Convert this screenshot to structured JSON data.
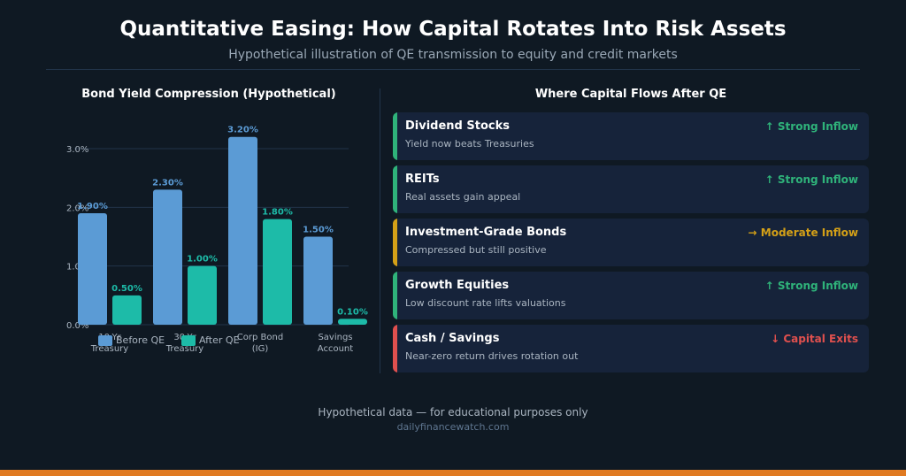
{
  "header": {
    "title": "Quantitative Easing: How Capital Rotates Into Risk Assets",
    "subtitle": "Hypothetical illustration of QE transmission to equity and credit markets"
  },
  "chart_data": {
    "type": "bar",
    "title": "Bond Yield Compression (Hypothetical)",
    "xlabel": "",
    "ylabel": "",
    "categories": [
      "10-Yr Treasury",
      "30-Yr Treasury",
      "Corp Bond (IG)",
      "Savings Account"
    ],
    "category_lines": [
      [
        "10-Yr",
        "Treasury"
      ],
      [
        "30-Yr",
        "Treasury"
      ],
      [
        "Corp Bond",
        "(IG)"
      ],
      [
        "Savings",
        "Account"
      ]
    ],
    "series": [
      {
        "name": "Before QE",
        "values": [
          1.9,
          2.3,
          3.2,
          1.5
        ],
        "labels": [
          "1.90%",
          "2.30%",
          "3.20%",
          "1.50%"
        ],
        "color": "#5b9bd5"
      },
      {
        "name": "After QE",
        "values": [
          0.5,
          1.0,
          1.8,
          0.1
        ],
        "labels": [
          "0.50%",
          "1.00%",
          "1.80%",
          "0.10%"
        ],
        "color": "#1dbba8"
      }
    ],
    "ylim": [
      0,
      3.0
    ],
    "yticks": [
      {
        "value": 0,
        "label": "0.0%"
      },
      {
        "value": 1,
        "label": "1.0%"
      },
      {
        "value": 2,
        "label": "2.0%"
      },
      {
        "value": 3,
        "label": "3.0%"
      }
    ],
    "grid": true,
    "legend_position": "bottom"
  },
  "flows": {
    "heading": "Where Capital Flows After QE",
    "items": [
      {
        "name": "Dividend Stocks",
        "description": "Yield now beats Treasuries",
        "status": "↑ Strong Inflow",
        "color": "#2fb37a"
      },
      {
        "name": "REITs",
        "description": "Real assets gain appeal",
        "status": "↑ Strong Inflow",
        "color": "#2fb37a"
      },
      {
        "name": "Investment-Grade Bonds",
        "description": "Compressed but still positive",
        "status": "→ Moderate Inflow",
        "color": "#d4a017"
      },
      {
        "name": "Growth Equities",
        "description": "Low discount rate lifts valuations",
        "status": "↑ Strong Inflow",
        "color": "#2fb37a"
      },
      {
        "name": "Cash / Savings",
        "description": "Near-zero return drives rotation out",
        "status": "↓ Capital Exits",
        "color": "#e0504e"
      }
    ]
  },
  "footer": {
    "note": "Hypothetical data — for educational purposes only",
    "site": "dailyfinancewatch.com"
  },
  "colors": {
    "background": "#0f1923",
    "accent_bar": "#e07a21",
    "gridline": "#22344a"
  }
}
